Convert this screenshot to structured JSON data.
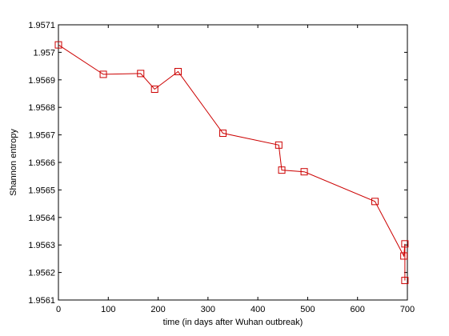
{
  "chart_data": {
    "type": "line",
    "title": "",
    "xlabel": "time (in days after Wuhan outbreak)",
    "ylabel": "Shannon entropy",
    "xlim": [
      0,
      700
    ],
    "ylim": [
      1.9561,
      1.9571
    ],
    "xticks": [
      0,
      100,
      200,
      300,
      400,
      500,
      600,
      700
    ],
    "xtick_labels": [
      "0",
      "100",
      "200",
      "300",
      "400",
      "500",
      "600",
      "700"
    ],
    "yticks": [
      1.9561,
      1.9562,
      1.9563,
      1.9564,
      1.9565,
      1.9566,
      1.9567,
      1.9568,
      1.9569,
      1.957,
      1.9571
    ],
    "ytick_labels": [
      "1.9561",
      "1.9562",
      "1.9563",
      "1.9564",
      "1.9565",
      "1.9566",
      "1.9567",
      "1.9568",
      "1.9569",
      "1.957",
      "1.9571"
    ],
    "grid": false,
    "legend": "none",
    "series": [
      {
        "color": "#cc0000",
        "marker": "square",
        "points": [
          {
            "x": 0,
            "y": 1.957027
          },
          {
            "x": 90,
            "y": 1.95692
          },
          {
            "x": 165,
            "y": 1.956923
          },
          {
            "x": 193,
            "y": 1.956866
          },
          {
            "x": 240,
            "y": 1.95693
          },
          {
            "x": 330,
            "y": 1.956706
          },
          {
            "x": 442,
            "y": 1.956663
          },
          {
            "x": 448,
            "y": 1.956572
          },
          {
            "x": 493,
            "y": 1.956566
          },
          {
            "x": 635,
            "y": 1.956458
          },
          {
            "x": 693,
            "y": 1.95626
          },
          {
            "x": 695,
            "y": 1.956304
          },
          {
            "x": 695,
            "y": 1.956171
          }
        ]
      }
    ]
  }
}
